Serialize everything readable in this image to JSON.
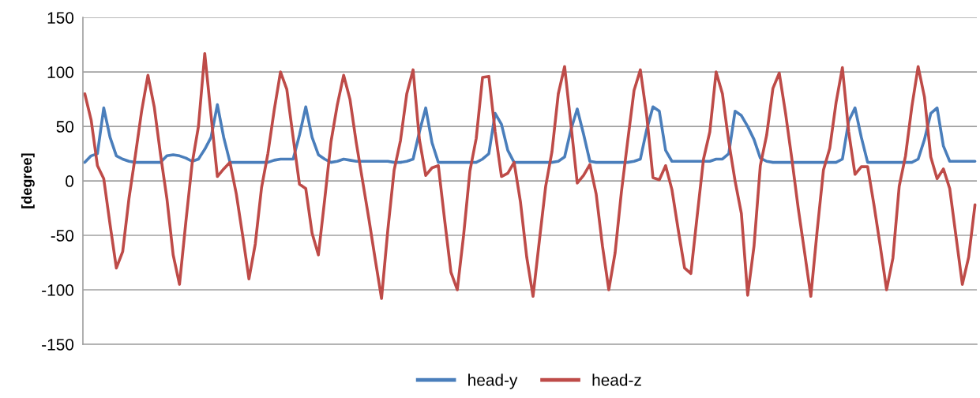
{
  "chart_data": {
    "type": "line",
    "ylabel": "[degree]",
    "categories": [
      null,
      null,
      null,
      null,
      null,
      null,
      null,
      null,
      null,
      null,
      null,
      null,
      null,
      null,
      null,
      null,
      null,
      null,
      null,
      null,
      null,
      null,
      null,
      null,
      null,
      null,
      null,
      null,
      null,
      null,
      null,
      null,
      null,
      null,
      null,
      null,
      null,
      null,
      null,
      null,
      null,
      null,
      null,
      null,
      null,
      null,
      null,
      null,
      null,
      null,
      null,
      null,
      null,
      null,
      null,
      null,
      null,
      null,
      null,
      null,
      null,
      null,
      null,
      null,
      null,
      null,
      null,
      null,
      null,
      null,
      null,
      null,
      null,
      null,
      null,
      null,
      null,
      null,
      null,
      null,
      null,
      null,
      null,
      null,
      null,
      null,
      null,
      null,
      null,
      null,
      null,
      null,
      null,
      null,
      null,
      null,
      null,
      null,
      null,
      null,
      null,
      null,
      null,
      null,
      null,
      null,
      null,
      null,
      null,
      null,
      null,
      null,
      null,
      null,
      null,
      null,
      null,
      null,
      null,
      null,
      null,
      null,
      null,
      null,
      null,
      null,
      null,
      null,
      null,
      null,
      null,
      null,
      null,
      null,
      null,
      null,
      null,
      null,
      null,
      null,
      null,
      null
    ],
    "series": [
      {
        "name": "head-y",
        "color": "#4a7ebb",
        "values": [
          17,
          23,
          25,
          67,
          40,
          23,
          20,
          18,
          17,
          17,
          17,
          17,
          17,
          23,
          24,
          23,
          21,
          18,
          20,
          29,
          40,
          70,
          40,
          17,
          17,
          17,
          17,
          17,
          17,
          17,
          19,
          20,
          20,
          20,
          42,
          68,
          40,
          24,
          20,
          17,
          18,
          20,
          19,
          18,
          18,
          18,
          18,
          18,
          18,
          17,
          17,
          18,
          20,
          45,
          67,
          35,
          17,
          17,
          17,
          17,
          17,
          17,
          17,
          20,
          25,
          62,
          52,
          28,
          17,
          17,
          17,
          17,
          17,
          17,
          17,
          18,
          22,
          47,
          66,
          43,
          18,
          17,
          17,
          17,
          17,
          17,
          17,
          18,
          20,
          47,
          68,
          64,
          28,
          18,
          18,
          18,
          18,
          18,
          18,
          18,
          20,
          20,
          25,
          64,
          60,
          50,
          38,
          21,
          18,
          17,
          17,
          17,
          17,
          17,
          17,
          17,
          17,
          17,
          17,
          17,
          20,
          55,
          67,
          40,
          17,
          17,
          17,
          17,
          17,
          17,
          17,
          17,
          20,
          38,
          62,
          67,
          32,
          18,
          18,
          18,
          18,
          18
        ]
      },
      {
        "name": "head-z",
        "color": "#be4b48",
        "values": [
          80,
          56,
          14,
          2,
          -40,
          -80,
          -65,
          -16,
          23,
          64,
          97,
          68,
          24,
          -16,
          -68,
          -95,
          -38,
          16,
          50,
          117,
          60,
          4,
          11,
          17,
          -12,
          -50,
          -90,
          -58,
          -6,
          25,
          65,
          100,
          84,
          40,
          -3,
          -7,
          -48,
          -68,
          -17,
          36,
          70,
          97,
          75,
          35,
          0,
          -35,
          -72,
          -108,
          -45,
          10,
          37,
          80,
          102,
          38,
          5,
          12,
          14,
          -36,
          -84,
          -100,
          -50,
          9,
          39,
          95,
          96,
          45,
          4,
          7,
          17,
          -19,
          -70,
          -106,
          -55,
          -5,
          27,
          80,
          105,
          52,
          -2,
          5,
          15,
          -12,
          -60,
          -100,
          -66,
          -10,
          37,
          83,
          102,
          60,
          3,
          1,
          14,
          -8,
          -45,
          -80,
          -85,
          -32,
          20,
          45,
          100,
          80,
          36,
          0,
          -30,
          -105,
          -60,
          14,
          42,
          85,
          99,
          62,
          20,
          -25,
          -65,
          -106,
          -46,
          10,
          30,
          72,
          104,
          45,
          6,
          13,
          13,
          -22,
          -60,
          -100,
          -71,
          -5,
          23,
          68,
          105,
          77,
          22,
          2,
          11,
          -7,
          -51,
          -95,
          -70,
          -22
        ]
      }
    ],
    "ylim": [
      -150,
      150
    ],
    "yticks": [
      -150,
      -100,
      -50,
      0,
      50,
      100,
      150
    ],
    "grid": "y",
    "legend": "bottom",
    "tick_labels": "y",
    "line_style": "solid",
    "marker": "none"
  }
}
